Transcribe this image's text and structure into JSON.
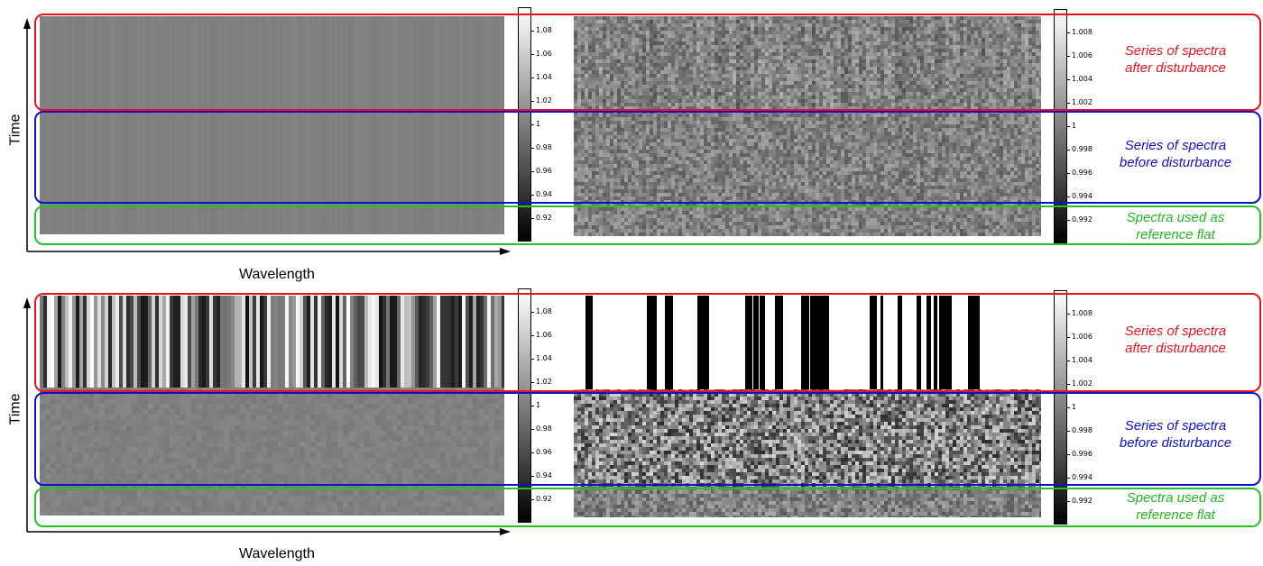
{
  "colorbar_left": {
    "ticks": [
      "1.08",
      "1.06",
      "1.04",
      "1.02",
      "1",
      "0.98",
      "0.96",
      "0.94",
      "0.92"
    ]
  },
  "colorbar_right": {
    "ticks": [
      "1.008",
      "1.006",
      "1.004",
      "1.002",
      "1",
      "0.998",
      "0.996",
      "0.994",
      "0.992"
    ]
  },
  "regions": {
    "after": {
      "line1": "Series of spectra",
      "line2": "after disturbance",
      "color": "#e8121e"
    },
    "before": {
      "line1": "Series of spectra",
      "line2": "before disturbance",
      "color": "#1010c8"
    },
    "reference": {
      "line1": "Spectra used as",
      "line2": "reference flat",
      "color": "#22c322"
    }
  },
  "axes": {
    "x_label": "Wavelength",
    "y_label": "Time"
  }
}
